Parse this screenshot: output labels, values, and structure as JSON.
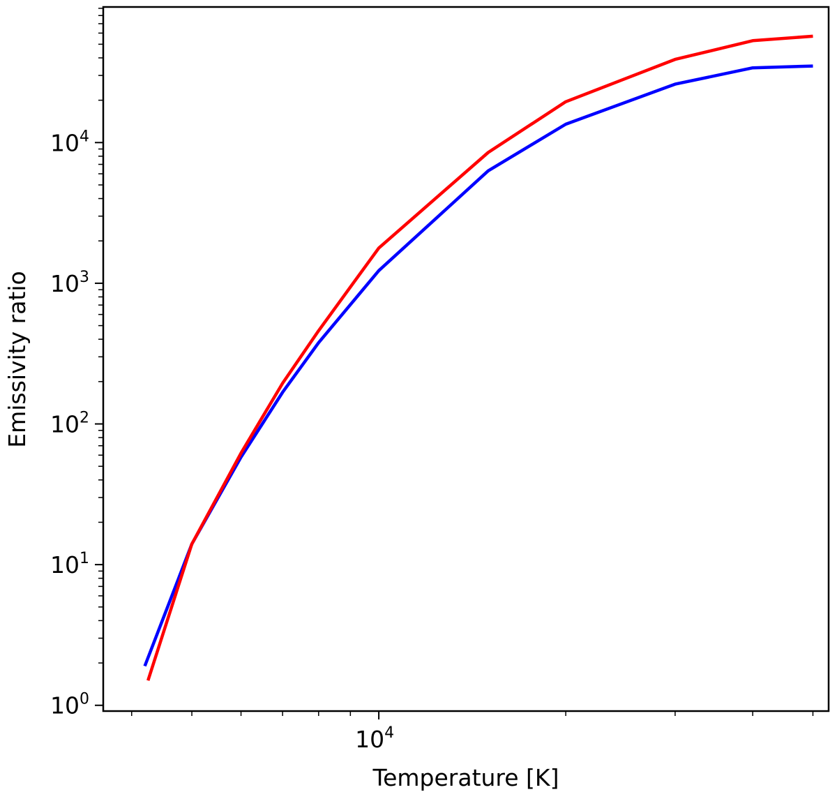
{
  "chart_data": {
    "type": "line",
    "title": "",
    "xlabel": "Temperature [K]",
    "ylabel": "Emissivity ratio",
    "xscale": "log",
    "yscale": "log",
    "xlim": [
      3600,
      53000
    ],
    "ylim": [
      0.91,
      92000
    ],
    "x_tick_labels": [
      {
        "base": "10",
        "exp": "4",
        "value": 10000
      }
    ],
    "y_tick_labels": [
      {
        "base": "10",
        "exp": "0",
        "value": 1
      },
      {
        "base": "10",
        "exp": "1",
        "value": 10
      },
      {
        "base": "10",
        "exp": "2",
        "value": 100
      },
      {
        "base": "10",
        "exp": "3",
        "value": 1000
      },
      {
        "base": "10",
        "exp": "4",
        "value": 10000
      }
    ],
    "grid": false,
    "legend": "none",
    "series": [
      {
        "color": "#0000ff",
        "x": [
          4200,
          5000,
          6000,
          7000,
          8000,
          10000,
          15000,
          20000,
          30000,
          40000,
          50000
        ],
        "y": [
          1.9,
          14,
          58,
          168,
          378,
          1230,
          6300,
          13500,
          26000,
          34000,
          35000
        ]
      },
      {
        "color": "#ff0000",
        "x": [
          4250,
          5000,
          6000,
          7000,
          8000,
          10000,
          15000,
          20000,
          30000,
          40000,
          50000
        ],
        "y": [
          1.5,
          14,
          62,
          195,
          460,
          1780,
          8500,
          19500,
          39000,
          53000,
          57000
        ]
      }
    ]
  }
}
